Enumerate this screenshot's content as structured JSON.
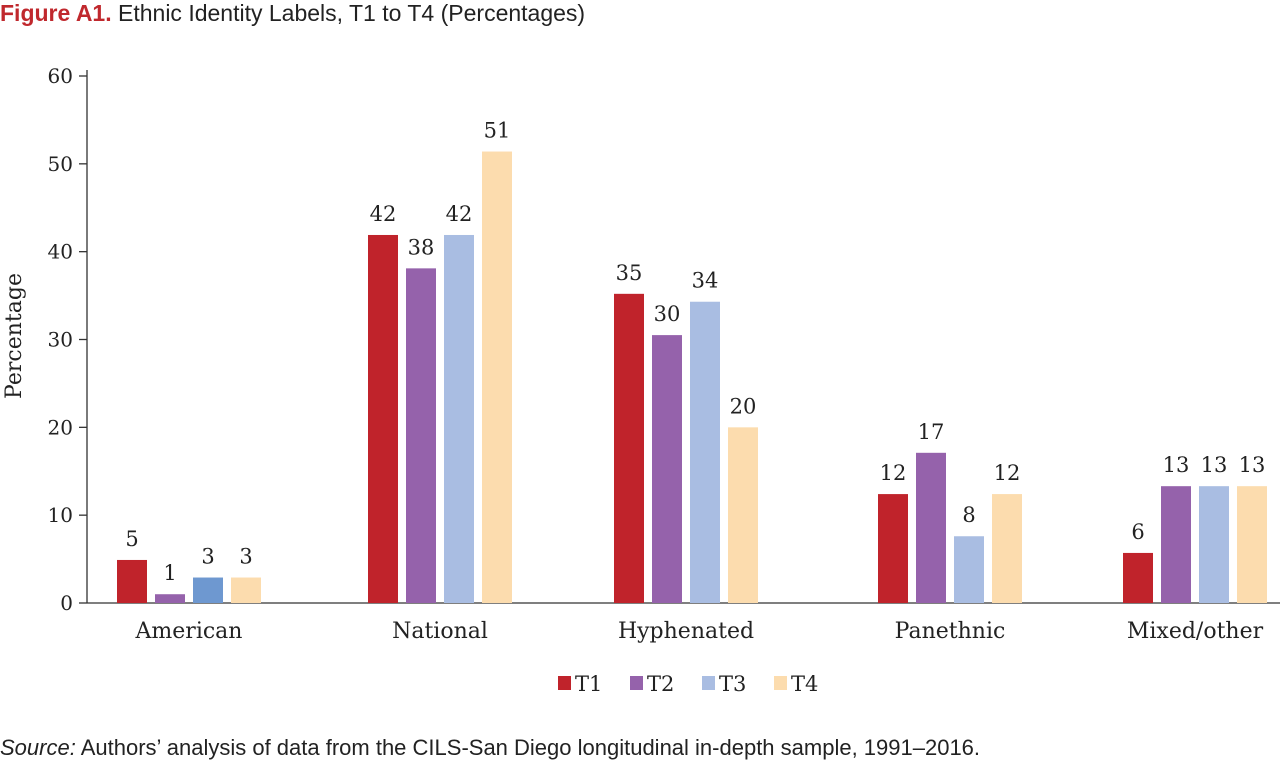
{
  "figure": {
    "label": "Figure A1.",
    "title": "Ethnic Identity Labels, T1 to T4 (Percentages)"
  },
  "source": {
    "label": "Source:",
    "text": "Authors’ analysis of data from the CILS-San Diego longitudinal in-depth sample, 1991–2016."
  },
  "chart_data": {
    "type": "bar",
    "title": "Ethnic Identity Labels, T1 to T4 (Percentages)",
    "xlabel": "",
    "ylabel": "Percentage",
    "ylim": [
      0,
      60
    ],
    "yticks": [
      0,
      10,
      20,
      30,
      40,
      50,
      60
    ],
    "grid": false,
    "legend_position": "bottom",
    "categories": [
      "American",
      "National",
      "Hyphenated",
      "Panethnic",
      "Mixed/other"
    ],
    "series": [
      {
        "name": "T1",
        "color": "#c0232b",
        "values": [
          4.9,
          41.9,
          35.2,
          12.4,
          5.7
        ],
        "labels": [
          "5",
          "42",
          "35",
          "12",
          "6"
        ]
      },
      {
        "name": "T2",
        "color": "#9562ab",
        "values": [
          1.0,
          38.1,
          30.5,
          17.1,
          13.3
        ],
        "labels": [
          "1",
          "38",
          "30",
          "17",
          "13"
        ]
      },
      {
        "name": "T3",
        "color": "#a9bde2",
        "values": [
          2.9,
          41.9,
          34.3,
          7.6,
          13.3
        ],
        "labels": [
          "3",
          "42",
          "34",
          "8",
          "13"
        ]
      },
      {
        "name": "T4",
        "color": "#fcdcae",
        "values": [
          2.9,
          51.4,
          20.0,
          12.4,
          13.3
        ],
        "labels": [
          "3",
          "51",
          "20",
          "12",
          "13"
        ]
      }
    ],
    "special_colors": {
      "american_T3": "#6e98d0"
    }
  }
}
